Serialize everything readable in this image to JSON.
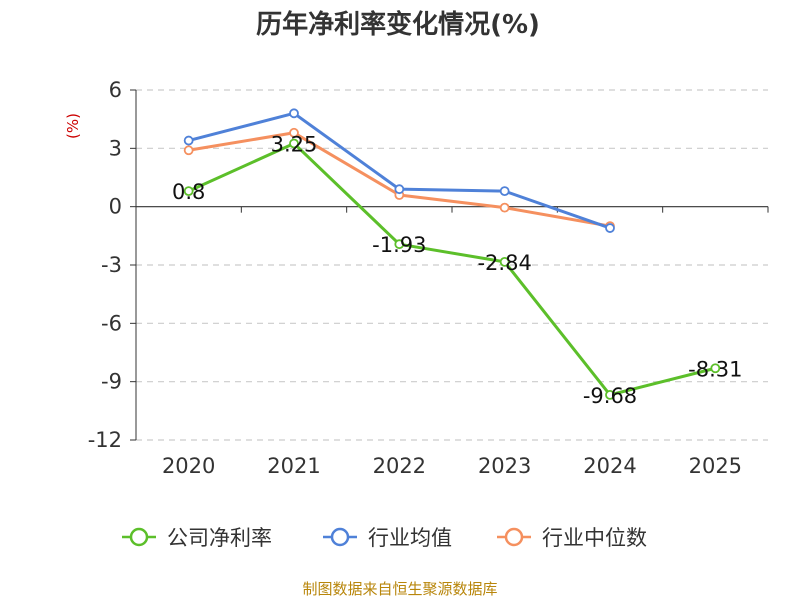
{
  "chart_data": {
    "type": "line",
    "title": "历年净利率变化情况(%)",
    "xlabel": "",
    "ylabel": "(%)",
    "categories": [
      "2020",
      "2021",
      "2022",
      "2023",
      "2024",
      "2025"
    ],
    "ylim": [
      -12,
      6
    ],
    "yticks": [
      "6",
      "3",
      "0",
      "-3",
      "-6",
      "-9",
      "-12"
    ],
    "ytick_values": [
      6,
      3,
      0,
      -3,
      -6,
      -9,
      -12
    ],
    "grid": true,
    "legend_position": "bottom",
    "series": [
      {
        "name": "公司净利率",
        "color": "#5cbf2a",
        "values": [
          0.8,
          3.25,
          -1.93,
          -2.84,
          -9.68,
          -8.31
        ],
        "labels": [
          "0.8",
          "3.25",
          "-1.93",
          "-2.84",
          "-9.68",
          "-8.31"
        ]
      },
      {
        "name": "行业均值",
        "color": "#4f81d8",
        "values": [
          3.4,
          4.8,
          0.9,
          0.8,
          -1.1,
          null
        ]
      },
      {
        "name": "行业中位数",
        "color": "#f5905f",
        "values": [
          2.9,
          3.8,
          0.6,
          -0.05,
          -1.0,
          null
        ]
      }
    ]
  },
  "source": "制图数据来自恒生聚源数据库"
}
